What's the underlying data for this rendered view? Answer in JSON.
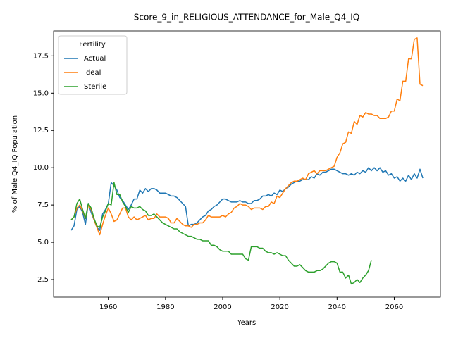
{
  "chart_data": {
    "type": "line",
    "title": "Score_9_in_RELIGIOUS_ATTENDANCE_for_Male_Q4_IQ",
    "xlabel": "Years",
    "ylabel": "% of Male Q4_IQ Population",
    "legend_title": "Fertility",
    "legend_loc": "upper left",
    "x": [
      1947,
      1948,
      1949,
      1950,
      1951,
      1952,
      1953,
      1954,
      1955,
      1956,
      1957,
      1958,
      1959,
      1960,
      1961,
      1962,
      1963,
      1964,
      1965,
      1966,
      1967,
      1968,
      1969,
      1970,
      1971,
      1972,
      1973,
      1974,
      1975,
      1976,
      1977,
      1978,
      1979,
      1980,
      1981,
      1982,
      1983,
      1984,
      1985,
      1986,
      1987,
      1988,
      1989,
      1990,
      1991,
      1992,
      1993,
      1994,
      1995,
      1996,
      1997,
      1998,
      1999,
      2000,
      2001,
      2002,
      2003,
      2004,
      2005,
      2006,
      2007,
      2008,
      2009,
      2010,
      2011,
      2012,
      2013,
      2014,
      2015,
      2016,
      2017,
      2018,
      2019,
      2020,
      2021,
      2022,
      2023,
      2024,
      2025,
      2026,
      2027,
      2028,
      2029,
      2030,
      2031,
      2032,
      2033,
      2034,
      2035,
      2036,
      2037,
      2038,
      2039,
      2040,
      2041,
      2042,
      2043,
      2044,
      2045,
      2046,
      2047,
      2048,
      2049,
      2050,
      2051,
      2052,
      2053,
      2054,
      2055,
      2056,
      2057,
      2058,
      2059,
      2060,
      2061,
      2062,
      2063,
      2064,
      2065,
      2066,
      2067,
      2068,
      2069,
      2070
    ],
    "series": [
      {
        "name": "Actual",
        "color": "#1f77b4",
        "values": [
          5.8,
          6.1,
          7.2,
          7.4,
          7.0,
          6.2,
          7.6,
          7.0,
          6.5,
          6.0,
          5.8,
          6.9,
          7.2,
          7.6,
          9.0,
          8.8,
          8.5,
          8.0,
          7.8,
          7.5,
          7.2,
          7.5,
          7.9,
          7.9,
          8.5,
          8.3,
          8.6,
          8.4,
          8.6,
          8.6,
          8.5,
          8.3,
          8.3,
          8.3,
          8.2,
          8.1,
          8.1,
          8.0,
          7.8,
          7.6,
          7.4,
          6.1,
          6.2,
          6.2,
          6.3,
          6.5,
          6.7,
          6.8,
          7.1,
          7.2,
          7.4,
          7.5,
          7.7,
          7.9,
          7.9,
          7.8,
          7.7,
          7.7,
          7.7,
          7.8,
          7.7,
          7.7,
          7.6,
          7.6,
          7.8,
          7.8,
          7.9,
          8.1,
          8.1,
          8.2,
          8.1,
          8.3,
          8.2,
          8.5,
          8.4,
          8.6,
          8.7,
          8.9,
          9.0,
          9.1,
          9.1,
          9.2,
          9.2,
          9.2,
          9.4,
          9.3,
          9.6,
          9.5,
          9.7,
          9.7,
          9.8,
          9.9,
          9.9,
          9.8,
          9.7,
          9.6,
          9.6,
          9.5,
          9.6,
          9.5,
          9.7,
          9.6,
          9.8,
          9.7,
          10.0,
          9.8,
          10.0,
          9.8,
          10.0,
          9.7,
          9.8,
          9.5,
          9.6,
          9.3,
          9.4,
          9.1,
          9.3,
          9.1,
          9.5,
          9.2,
          9.6,
          9.3,
          9.9,
          9.3
        ]
      },
      {
        "name": "Ideal",
        "color": "#ff7f0e",
        "values": [
          6.5,
          6.7,
          7.3,
          7.5,
          7.1,
          6.6,
          7.5,
          7.2,
          6.5,
          6.0,
          5.5,
          6.2,
          6.8,
          7.3,
          6.9,
          6.4,
          6.5,
          6.9,
          7.3,
          7.3,
          6.7,
          6.5,
          6.7,
          6.5,
          6.6,
          6.7,
          6.8,
          6.5,
          6.6,
          6.6,
          6.9,
          6.7,
          6.7,
          6.7,
          6.6,
          6.3,
          6.3,
          6.6,
          6.4,
          6.2,
          6.1,
          6.1,
          6.0,
          6.2,
          6.2,
          6.3,
          6.3,
          6.5,
          6.8,
          6.7,
          6.7,
          6.7,
          6.7,
          6.8,
          6.7,
          6.9,
          7.0,
          7.3,
          7.4,
          7.6,
          7.5,
          7.5,
          7.4,
          7.2,
          7.3,
          7.3,
          7.3,
          7.2,
          7.4,
          7.4,
          7.7,
          7.6,
          8.1,
          8.0,
          8.3,
          8.6,
          8.8,
          9.0,
          9.1,
          9.1,
          9.2,
          9.3,
          9.2,
          9.6,
          9.7,
          9.8,
          9.6,
          9.8,
          9.8,
          9.8,
          9.9,
          10.0,
          10.1,
          10.7,
          11.0,
          11.6,
          11.7,
          12.4,
          12.3,
          13.1,
          12.9,
          13.5,
          13.4,
          13.7,
          13.6,
          13.6,
          13.5,
          13.5,
          13.3,
          13.3,
          13.3,
          13.4,
          13.8,
          13.8,
          14.6,
          14.5,
          15.8,
          15.8,
          17.3,
          17.3,
          18.6,
          18.7,
          15.6,
          15.5
        ]
      },
      {
        "name": "Sterile",
        "color": "#2ca02c",
        "values": [
          6.5,
          6.7,
          7.6,
          7.9,
          7.2,
          6.6,
          7.6,
          7.3,
          6.6,
          6.1,
          6.0,
          6.7,
          7.1,
          7.6,
          7.5,
          9.0,
          8.2,
          8.2,
          7.7,
          7.4,
          7.0,
          7.4,
          7.3,
          7.3,
          7.4,
          7.2,
          7.1,
          6.8,
          6.8,
          6.9,
          6.7,
          6.5,
          6.3,
          6.2,
          6.1,
          6.0,
          5.9,
          5.9,
          5.7,
          5.6,
          5.5,
          5.4,
          5.4,
          5.3,
          5.2,
          5.2,
          5.1,
          5.1,
          5.1,
          4.8,
          4.8,
          4.7,
          4.5,
          4.4,
          4.4,
          4.4,
          4.2,
          4.2,
          4.2,
          4.2,
          4.2,
          3.9,
          3.8,
          4.7,
          4.7,
          4.7,
          4.6,
          4.6,
          4.4,
          4.3,
          4.3,
          4.2,
          4.3,
          4.2,
          4.1,
          4.1,
          3.8,
          3.6,
          3.4,
          3.4,
          3.5,
          3.3,
          3.1,
          3.0,
          3.0,
          3.0,
          3.1,
          3.1,
          3.2,
          3.4,
          3.6,
          3.7,
          3.7,
          3.6,
          3.0,
          3.0,
          2.6,
          2.8,
          2.2,
          2.3,
          2.5,
          2.3,
          2.6,
          2.8,
          3.1,
          3.8,
          null,
          null,
          null,
          null,
          null,
          null,
          null,
          null,
          null,
          null,
          null,
          null,
          null,
          null,
          null,
          null,
          null,
          null
        ]
      }
    ],
    "xlim": [
      1940.85,
      2076.15
    ],
    "xticks": [
      1960,
      1980,
      2000,
      2020,
      2040,
      2060
    ],
    "ylim": [
      1.32,
      19.17
    ],
    "yticks": [
      2.5,
      {
        "value": 5,
        "label": "5.0"
      },
      7.5,
      {
        "value": 10,
        "label": "10.0"
      },
      12.5,
      {
        "value": 15,
        "label": "15.0"
      },
      17.5
    ],
    "grid": false
  }
}
